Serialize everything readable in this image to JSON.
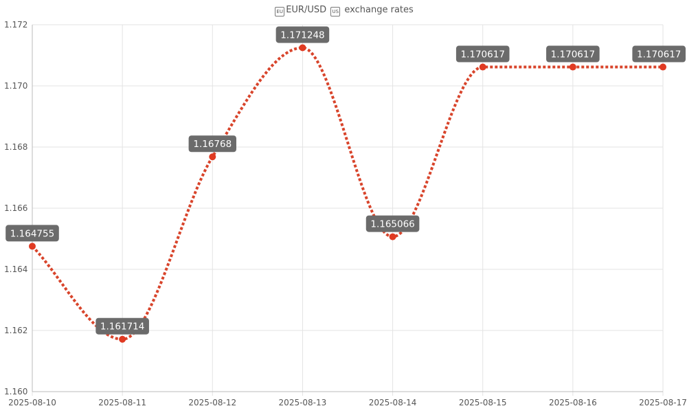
{
  "chart_data": {
    "type": "line",
    "title": "EUR/USD exchange rates",
    "title_parts": {
      "base": "EUR",
      "base_flag_label": "EU",
      "quote": "USD",
      "quote_flag_label": "US",
      "rest": "exchange rates"
    },
    "xlabel": "",
    "ylabel": "",
    "categories": [
      "2025-08-10",
      "2025-08-11",
      "2025-08-12",
      "2025-08-13",
      "2025-08-14",
      "2025-08-15",
      "2025-08-16",
      "2025-08-17"
    ],
    "series": [
      {
        "values": [
          1.164755,
          1.161714,
          1.16768,
          1.171248,
          1.165066,
          1.170617,
          1.170617,
          1.170617
        ]
      }
    ],
    "data_labels": [
      "1.164755",
      "1.161714",
      "1.16768",
      "1.171248",
      "1.165066",
      "1.170617",
      "1.170617",
      "1.170617"
    ],
    "ylim": [
      1.16,
      1.172
    ],
    "yticks": [
      "1.160",
      "1.162",
      "1.164",
      "1.166",
      "1.168",
      "1.170",
      "1.172"
    ],
    "grid": true,
    "line_style": "dotted",
    "colors": {
      "line": "#d8442b",
      "point": "#e03a22",
      "label_bg": "#6b6b6b",
      "label_text": "#ffffff",
      "grid": "#e3e3e3",
      "axis_text": "#555555"
    }
  }
}
